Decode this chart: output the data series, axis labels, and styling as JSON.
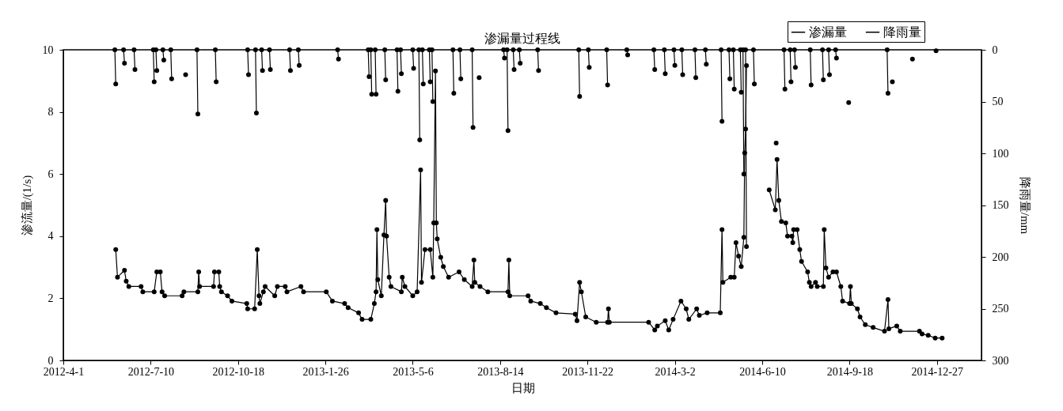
{
  "chart_data": {
    "type": "line",
    "title": "渗漏量过程线",
    "xlabel": "日期",
    "ylabel": "渗流量/(1/s)",
    "y2label": "降雨量/mm",
    "xlim": [
      "2012-04-01",
      "2015-02-16"
    ],
    "xticks": [
      {
        "value": "2012-04-01",
        "label": "2012-4-1"
      },
      {
        "value": "2012-07-10",
        "label": "2012-7-10"
      },
      {
        "value": "2012-10-18",
        "label": "2012-10-18"
      },
      {
        "value": "2013-01-26",
        "label": "2013-1-26"
      },
      {
        "value": "2013-05-06",
        "label": "2013-5-6"
      },
      {
        "value": "2013-08-14",
        "label": "2013-8-14"
      },
      {
        "value": "2013-11-22",
        "label": "2013-11-22"
      },
      {
        "value": "2014-03-02",
        "label": "2014-3-2"
      },
      {
        "value": "2014-06-10",
        "label": "2014-6-10"
      },
      {
        "value": "2014-09-18",
        "label": "2014-9-18"
      },
      {
        "value": "2014-12-27",
        "label": "2014-12-27"
      }
    ],
    "ylim": [
      0,
      10
    ],
    "yticks": [
      0,
      2,
      4,
      6,
      8,
      10
    ],
    "y2lim": [
      300,
      0
    ],
    "y2ticks": [
      0,
      50,
      100,
      150,
      200,
      250,
      300
    ],
    "grid": false,
    "legend": "top right",
    "marker": "circle",
    "line_style": "solid",
    "series": [
      {
        "name": "渗漏量",
        "color": "#000000",
        "x": [
          "2012-05-31",
          "2012-06-02",
          "2012-06-10",
          "2012-06-12",
          "2012-06-15",
          "2012-06-29",
          "2012-07-01",
          "2012-07-14",
          "2012-07-17",
          "2012-07-21",
          "2012-07-23",
          "2012-07-26",
          "2012-08-15",
          "2012-08-17",
          "2012-09-02",
          "2012-09-03",
          "2012-09-04",
          "2012-09-20",
          "2012-09-21",
          "2012-09-26",
          "2012-09-27",
          "2012-09-29",
          "2012-10-06",
          "2012-10-11",
          "2012-10-28",
          "2012-10-29",
          "2012-11-06",
          "2012-11-09",
          "2012-11-11",
          "2012-11-12",
          "2012-11-16",
          "2012-11-18",
          "2012-11-29",
          "2012-12-02",
          "2012-12-11",
          "2012-12-13",
          "2012-12-29",
          "2013-01-01",
          "2013-01-27",
          "2013-02-03",
          "2013-02-17",
          "2013-02-21",
          "2013-03-05",
          "2013-03-09",
          "2013-03-19",
          "2013-03-23",
          "2013-03-25",
          "2013-03-26",
          "2013-03-27",
          "2013-03-31",
          "2013-04-03",
          "2013-04-05",
          "2013-04-06",
          "2013-04-09",
          "2013-04-11",
          "2013-04-23",
          "2013-04-24",
          "2013-04-27",
          "2013-05-06",
          "2013-05-11",
          "2013-05-15",
          "2013-05-16",
          "2013-05-20",
          "2013-05-26",
          "2013-05-29",
          "2013-05-30",
          "2013-06-01",
          "2013-06-02",
          "2013-06-03",
          "2013-06-07",
          "2013-06-10",
          "2013-06-16",
          "2013-06-28",
          "2013-07-04",
          "2013-07-13",
          "2013-07-15",
          "2013-07-16",
          "2013-07-22",
          "2013-07-31",
          "2013-08-23",
          "2013-08-24",
          "2013-08-25",
          "2013-09-15",
          "2013-09-18",
          "2013-09-29",
          "2013-10-06",
          "2013-10-17",
          "2013-11-08",
          "2013-11-10",
          "2013-11-13",
          "2013-11-15",
          "2013-11-20",
          "2013-12-02",
          "2013-12-15",
          "2013-12-16",
          "2013-12-17",
          "2014-01-31",
          "2014-02-07",
          "2014-02-10",
          "2014-02-19",
          "2014-02-23",
          "2014-02-28",
          "2014-03-09",
          "2014-03-15",
          "2014-03-18",
          "2014-03-27",
          "2014-03-30",
          "2014-04-08",
          "2014-04-23",
          "2014-04-25",
          "2014-04-26",
          "2014-05-05",
          "2014-05-09",
          "2014-05-11",
          "2014-05-14",
          "2014-05-17",
          "2014-05-20",
          "2014-05-21",
          "2014-05-22",
          "2014-05-23",
          "2014-06-01",
          "2014-06-18",
          "2014-06-25",
          "2014-06-27",
          "2014-06-29",
          "2014-07-02",
          "2014-07-07",
          "2014-07-09",
          "2014-07-14",
          "2014-07-15",
          "2014-07-16",
          "2014-07-20",
          "2014-07-23",
          "2014-07-25",
          "2014-08-01",
          "2014-08-03",
          "2014-08-05",
          "2014-08-10",
          "2014-08-12",
          "2014-08-19",
          "2014-08-20",
          "2014-08-22",
          "2014-08-25",
          "2014-08-30",
          "2014-09-03",
          "2014-09-08",
          "2014-09-10",
          "2014-09-18",
          "2014-09-19",
          "2014-09-20",
          "2014-09-27",
          "2014-09-30",
          "2014-10-06",
          "2014-10-15",
          "2014-10-28",
          "2014-11-01",
          "2014-11-02",
          "2014-11-11",
          "2014-11-15",
          "2014-12-07",
          "2014-12-10",
          "2014-12-17",
          "2014-12-25",
          "2015-01-02"
        ],
        "values": [
          3.57,
          2.68,
          2.9,
          2.55,
          2.38,
          2.38,
          2.21,
          2.21,
          2.85,
          2.85,
          2.21,
          2.08,
          2.08,
          2.21,
          2.21,
          2.85,
          2.38,
          2.38,
          2.85,
          2.85,
          2.38,
          2.21,
          2.08,
          1.91,
          1.83,
          1.66,
          1.66,
          3.57,
          2.08,
          1.83,
          2.21,
          2.38,
          2.08,
          2.38,
          2.38,
          2.21,
          2.38,
          2.21,
          2.21,
          1.91,
          1.83,
          1.7,
          1.53,
          1.32,
          1.32,
          1.83,
          2.21,
          4.21,
          2.6,
          2.08,
          4.04,
          5.15,
          4.0,
          2.68,
          2.38,
          2.21,
          2.68,
          2.38,
          2.08,
          2.21,
          6.13,
          2.51,
          3.57,
          3.57,
          2.68,
          4.43,
          9.32,
          4.43,
          3.91,
          3.32,
          3.02,
          2.68,
          2.85,
          2.6,
          2.38,
          3.23,
          2.51,
          2.38,
          2.21,
          2.21,
          3.23,
          2.08,
          2.08,
          1.91,
          1.83,
          1.7,
          1.53,
          1.49,
          1.28,
          2.51,
          2.21,
          1.4,
          1.23,
          1.23,
          1.66,
          1.23,
          1.23,
          0.98,
          1.11,
          1.28,
          0.98,
          1.32,
          1.91,
          1.66,
          1.32,
          1.66,
          1.45,
          1.53,
          1.53,
          4.21,
          2.51,
          2.68,
          2.68,
          3.79,
          3.36,
          3.02,
          3.96,
          6.68,
          7.45,
          9.49,
          null,
          5.49,
          4.85,
          6.47,
          5.15,
          4.47,
          4.43,
          4.0,
          4.0,
          3.79,
          4.21,
          4.21,
          3.57,
          3.19,
          2.85,
          2.51,
          2.38,
          2.51,
          2.38,
          2.38,
          4.21,
          2.98,
          2.68,
          2.85,
          2.85,
          2.38,
          1.91,
          1.83,
          2.38,
          1.83,
          1.66,
          1.4,
          1.15,
          1.06,
          0.94,
          1.96,
          1.02,
          1.11,
          0.94,
          0.94,
          0.85,
          0.81,
          0.72,
          0.72
        ]
      },
      {
        "name": "降雨量",
        "color": "#000000",
        "axis": "y2",
        "x": [
          "2012-05-30",
          "2012-05-31",
          "2012-06-01",
          "2012-06-09",
          "2012-06-10",
          "2012-06-11",
          "2012-06-21",
          "2012-06-22",
          "2012-06-23",
          "2012-07-13",
          "2012-07-14",
          "2012-07-15",
          "2012-07-16",
          "2012-07-17",
          "2012-07-18",
          "2012-07-24",
          "2012-07-25",
          "2012-07-26",
          "2012-08-02",
          "2012-08-03",
          "2012-08-04",
          "2012-08-19",
          "2012-08-20",
          "2012-09-01",
          "2012-09-02",
          "2012-09-03",
          "2012-09-22",
          "2012-09-23",
          "2012-09-24",
          "2012-10-29",
          "2012-10-30",
          "2012-10-31",
          "2012-11-07",
          "2012-11-08",
          "2012-11-09",
          "2012-11-14",
          "2012-11-15",
          "2012-11-16",
          "2012-11-23",
          "2012-11-24",
          "2012-11-25",
          "2012-12-16",
          "2012-12-17",
          "2012-12-18",
          "2012-12-26",
          "2012-12-27",
          "2012-12-28",
          "2013-02-09",
          "2013-02-10",
          "2013-02-11",
          "2013-03-16",
          "2013-03-17",
          "2013-03-18",
          "2013-03-19",
          "2013-03-20",
          "2013-03-21",
          "2013-03-24",
          "2013-03-25",
          "2013-03-26",
          "2013-04-04",
          "2013-04-05",
          "2013-04-06",
          "2013-04-18",
          "2013-04-19",
          "2013-04-20",
          "2013-04-22",
          "2013-04-23",
          "2013-04-24",
          "2013-05-06",
          "2013-05-07",
          "2013-05-08",
          "2013-05-13",
          "2013-05-14",
          "2013-05-15",
          "2013-05-17",
          "2013-05-18",
          "2013-05-19",
          "2013-05-25",
          "2013-05-26",
          "2013-05-27",
          "2013-05-28",
          "2013-05-29",
          "2013-05-30",
          "2013-06-21",
          "2013-06-22",
          "2013-06-23",
          "2013-06-29",
          "2013-06-30",
          "2013-07-01",
          "2013-07-13",
          "2013-07-14",
          "2013-07-15",
          "2013-07-21",
          "2013-07-22",
          "2013-08-18",
          "2013-08-19",
          "2013-08-20",
          "2013-08-22",
          "2013-08-23",
          "2013-08-24",
          "2013-08-29",
          "2013-08-30",
          "2013-08-31",
          "2013-09-05",
          "2013-09-06",
          "2013-09-07",
          "2013-09-26",
          "2013-09-27",
          "2013-09-28",
          "2013-11-12",
          "2013-11-13",
          "2013-11-14",
          "2013-11-23",
          "2013-11-24",
          "2013-11-25",
          "2013-12-14",
          "2013-12-15",
          "2013-12-16",
          "2014-01-06",
          "2014-01-07",
          "2014-01-08",
          "2014-02-06",
          "2014-02-07",
          "2014-02-08",
          "2014-02-18",
          "2014-02-19",
          "2014-02-20",
          "2014-03-01",
          "2014-03-02",
          "2014-03-03",
          "2014-03-10",
          "2014-03-11",
          "2014-03-12",
          "2014-03-25",
          "2014-03-26",
          "2014-03-27",
          "2014-04-06",
          "2014-04-07",
          "2014-04-08",
          "2014-04-24",
          "2014-04-25",
          "2014-04-26",
          "2014-05-03",
          "2014-05-04",
          "2014-05-05",
          "2014-05-08",
          "2014-05-09",
          "2014-05-10",
          "2014-05-16",
          "2014-05-17",
          "2014-05-18",
          "2014-05-19",
          "2014-05-20",
          "2014-05-21",
          "2014-05-22",
          "2014-05-23",
          "2014-05-24",
          "2014-05-31",
          "2014-06-01",
          "2014-06-02",
          "2014-06-26",
          "2014-06-27",
          "2014-07-05",
          "2014-07-06",
          "2014-07-07",
          "2014-07-12",
          "2014-07-13",
          "2014-07-14",
          "2014-07-17",
          "2014-07-18",
          "2014-07-19",
          "2014-08-04",
          "2014-08-05",
          "2014-08-06",
          "2014-08-18",
          "2014-08-19",
          "2014-08-20",
          "2014-08-25",
          "2014-08-26",
          "2014-08-27",
          "2014-09-02",
          "2014-09-03",
          "2014-09-04",
          "2014-09-17",
          "2014-09-18",
          "2014-10-31",
          "2014-11-01",
          "2014-11-02",
          "2014-11-06",
          "2014-11-07",
          "2014-11-29",
          "2014-11-30",
          "2014-12-26"
        ],
        "values": [
          0,
          33,
          null,
          0,
          13,
          null,
          0,
          19,
          null,
          0,
          31,
          null,
          0,
          20,
          null,
          0,
          10,
          null,
          0,
          28,
          null,
          24,
          null,
          0,
          62,
          null,
          0,
          31,
          null,
          0,
          24,
          null,
          0,
          61,
          null,
          0,
          20,
          null,
          0,
          19,
          null,
          0,
          20,
          null,
          0,
          15,
          null,
          0,
          9,
          null,
          0,
          26,
          null,
          0,
          43,
          null,
          0,
          43,
          null,
          0,
          29,
          null,
          0,
          40,
          null,
          0,
          23,
          null,
          0,
          18,
          null,
          0,
          87,
          null,
          0,
          33,
          null,
          0,
          31,
          null,
          0,
          50,
          null,
          0,
          42,
          null,
          0,
          28,
          null,
          0,
          75,
          null,
          27,
          null,
          0,
          8,
          null,
          0,
          78,
          null,
          0,
          19,
          null,
          0,
          13,
          null,
          0,
          20,
          null,
          0,
          45,
          null,
          0,
          17,
          null,
          0,
          34,
          null,
          0,
          5,
          null,
          0,
          19,
          null,
          0,
          23,
          null,
          0,
          15,
          null,
          0,
          24,
          null,
          0,
          27,
          null,
          0,
          14,
          null,
          0,
          69,
          null,
          0,
          28,
          null,
          0,
          38,
          null,
          0,
          41,
          null,
          0,
          120,
          null,
          0,
          190,
          null,
          0,
          33,
          null,
          90,
          null,
          0,
          38,
          null,
          0,
          31,
          null,
          0,
          17,
          null,
          0,
          34,
          null,
          0,
          29,
          null,
          0,
          24,
          null,
          0,
          8,
          null,
          51,
          null,
          0,
          42,
          null,
          31,
          null,
          9,
          null,
          1
        ]
      }
    ]
  }
}
